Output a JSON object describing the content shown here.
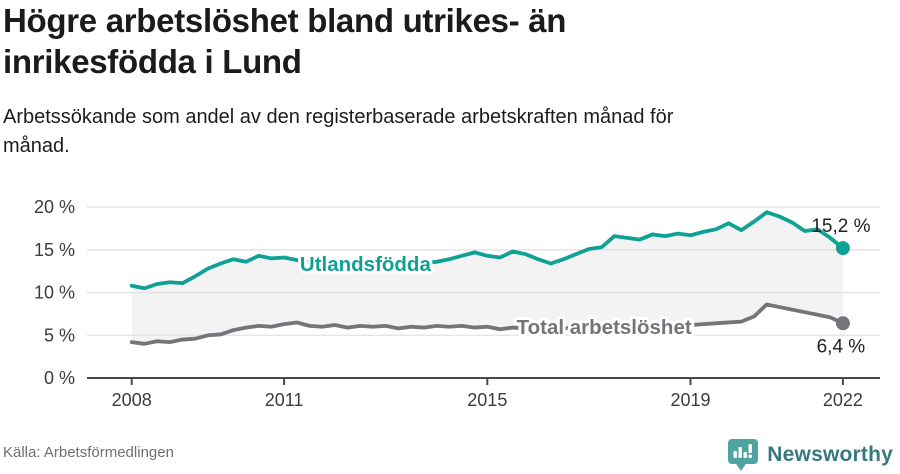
{
  "header": {
    "title": "Högre arbetslöshet bland utrikes- än\ninrikesfödda i Lund",
    "subtitle": "Arbetssökande som andel av den registerbaserade arbetskraften månad för\nmånad."
  },
  "footer": {
    "source": "Källa: Arbetsförmedlingen",
    "brand": "Newsworthy",
    "brand_icon": "newsworthy-speech-bubble-bar-chart",
    "brand_icon_color": "#4fa3a0",
    "brand_text_color": "#37797e"
  },
  "chart_data": {
    "type": "line",
    "title": "",
    "xlabel": "",
    "ylabel": "",
    "x_unit": "year (monthly observations)",
    "y_unit": "percent",
    "grid": true,
    "area_between_series": true,
    "area_color": "#f3f3f3",
    "grid_color": "#e2e2e2",
    "axis_color": "#494949",
    "tick_label_color": "#3c3c3c",
    "end_label_color": "#222222",
    "xlim": [
      2007.12,
      2022.73
    ],
    "ylim": [
      0,
      22
    ],
    "x_ticks": [
      {
        "v": 2008,
        "label": "2008"
      },
      {
        "v": 2011,
        "label": "2011"
      },
      {
        "v": 2015,
        "label": "2015"
      },
      {
        "v": 2019,
        "label": "2019"
      },
      {
        "v": 2022,
        "label": "2022"
      }
    ],
    "y_ticks": [
      {
        "v": 0,
        "label": "0 %"
      },
      {
        "v": 5,
        "label": "5 %"
      },
      {
        "v": 10,
        "label": "10 %"
      },
      {
        "v": 15,
        "label": "15 %"
      },
      {
        "v": 20,
        "label": "20 %"
      }
    ],
    "x": [
      2008,
      2008.25,
      2008.5,
      2008.75,
      2009,
      2009.25,
      2009.5,
      2009.75,
      2010,
      2010.25,
      2010.5,
      2010.75,
      2011,
      2011.25,
      2011.5,
      2011.75,
      2012,
      2012.25,
      2012.5,
      2012.75,
      2013,
      2013.25,
      2013.5,
      2013.75,
      2014,
      2014.25,
      2014.5,
      2014.75,
      2015,
      2015.25,
      2015.5,
      2015.75,
      2016,
      2016.25,
      2016.5,
      2016.75,
      2017,
      2017.25,
      2017.5,
      2017.75,
      2018,
      2018.25,
      2018.5,
      2018.75,
      2019,
      2019.25,
      2019.5,
      2019.75,
      2020,
      2020.25,
      2020.5,
      2020.75,
      2021,
      2021.25,
      2021.5,
      2021.75,
      2022
    ],
    "series": [
      {
        "name": "Utlandsfödda",
        "color": "#0fa294",
        "last_value_label": "15,2 %",
        "inline_label": {
          "x": 2012.6,
          "y": 13.35
        },
        "end_label_offset": {
          "dx": -2,
          "dy": -16
        },
        "values": [
          10.8,
          10.5,
          11.0,
          11.2,
          11.1,
          11.9,
          12.8,
          13.4,
          13.9,
          13.6,
          14.3,
          14.0,
          14.1,
          13.8,
          13.6,
          13.7,
          13.5,
          13.6,
          13.4,
          13.5,
          13.3,
          13.5,
          13.3,
          13.4,
          13.6,
          13.9,
          14.3,
          14.7,
          14.3,
          14.1,
          14.8,
          14.5,
          13.9,
          13.4,
          13.9,
          14.5,
          15.1,
          15.3,
          16.6,
          16.4,
          16.2,
          16.8,
          16.6,
          16.9,
          16.7,
          17.1,
          17.4,
          18.1,
          17.3,
          18.3,
          19.4,
          18.9,
          18.2,
          17.2,
          17.4,
          16.4,
          15.2
        ]
      },
      {
        "name": "Total arbetslöshet",
        "color": "#74747a",
        "last_value_label": "6,4 %",
        "inline_label": {
          "x": 2017.3,
          "y": 5.95
        },
        "end_label_offset": {
          "dx": -2,
          "dy": 29
        },
        "values": [
          4.2,
          4.0,
          4.3,
          4.2,
          4.5,
          4.6,
          5.0,
          5.1,
          5.6,
          5.9,
          6.1,
          6.0,
          6.3,
          6.5,
          6.1,
          6.0,
          6.2,
          5.9,
          6.1,
          6.0,
          6.1,
          5.8,
          6.0,
          5.9,
          6.1,
          6.0,
          6.1,
          5.9,
          6.0,
          5.7,
          5.9,
          5.8,
          5.9,
          5.7,
          5.8,
          5.9,
          6.0,
          5.9,
          6.0,
          5.9,
          6.0,
          5.9,
          6.0,
          6.1,
          6.2,
          6.3,
          6.4,
          6.5,
          6.6,
          7.2,
          8.6,
          8.3,
          8.0,
          7.7,
          7.4,
          7.1,
          6.4
        ]
      }
    ]
  }
}
